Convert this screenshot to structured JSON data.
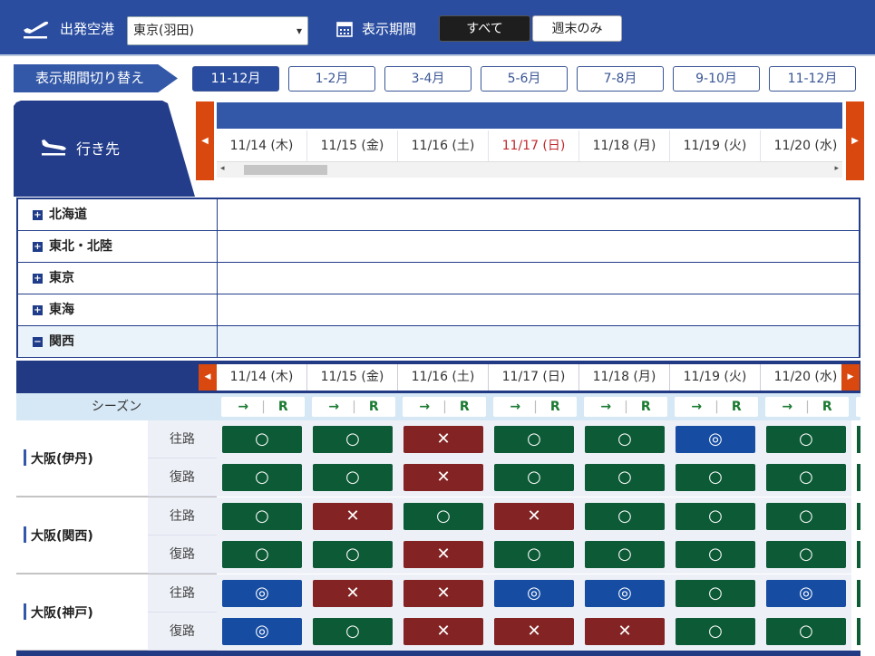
{
  "header": {
    "departure_label": "出発空港",
    "departure_value": "東京(羽田)",
    "period_label": "表示期間",
    "toggle_all": "すべて",
    "toggle_weekend": "週末のみ"
  },
  "period_switch": {
    "label": "表示期間切り替え",
    "tabs": [
      "11-12月",
      "1-2月",
      "3-4月",
      "5-6月",
      "7-8月",
      "9-10月",
      "11-12月"
    ],
    "selected_index": 0
  },
  "destination_label": "行き先",
  "dates": [
    {
      "label": "11/14 (木)",
      "holiday": false
    },
    {
      "label": "11/15 (金)",
      "holiday": false
    },
    {
      "label": "11/16 (土)",
      "holiday": false
    },
    {
      "label": "11/17 (日)",
      "holiday": true
    },
    {
      "label": "11/18 (月)",
      "holiday": false
    },
    {
      "label": "11/19 (火)",
      "holiday": false
    },
    {
      "label": "11/20 (水)",
      "holiday": false
    }
  ],
  "regions": [
    {
      "name": "北海道",
      "icon": "+"
    },
    {
      "name": "東北・北陸",
      "icon": "+"
    },
    {
      "name": "東京",
      "icon": "+"
    },
    {
      "name": "東海",
      "icon": "+"
    },
    {
      "name": "関西",
      "icon": "−"
    }
  ],
  "season_label": "シーズン",
  "season_cell": {
    "arrow": "→",
    "r": "R"
  },
  "direction_labels": {
    "outbound": "往路",
    "return": "復路"
  },
  "symbols": {
    "ok": "○",
    "no": "✕",
    "best": "◎"
  },
  "colors": {
    "ok": "#0d5a36",
    "no": "#832323",
    "best": "#164da3",
    "header": "#2a4da0",
    "sunday": "#c1272d"
  },
  "airports": [
    {
      "name": "大阪(伊丹)",
      "outbound": [
        "ok",
        "ok",
        "no",
        "ok",
        "ok",
        "best",
        "ok"
      ],
      "return": [
        "ok",
        "ok",
        "no",
        "ok",
        "ok",
        "ok",
        "ok"
      ]
    },
    {
      "name": "大阪(関西)",
      "outbound": [
        "ok",
        "no",
        "ok",
        "no",
        "ok",
        "ok",
        "ok"
      ],
      "return": [
        "ok",
        "ok",
        "no",
        "ok",
        "ok",
        "ok",
        "ok"
      ]
    },
    {
      "name": "大阪(神戸)",
      "outbound": [
        "best",
        "no",
        "no",
        "best",
        "best",
        "ok",
        "best"
      ],
      "return": [
        "best",
        "ok",
        "no",
        "no",
        "no",
        "ok",
        "ok"
      ]
    }
  ]
}
